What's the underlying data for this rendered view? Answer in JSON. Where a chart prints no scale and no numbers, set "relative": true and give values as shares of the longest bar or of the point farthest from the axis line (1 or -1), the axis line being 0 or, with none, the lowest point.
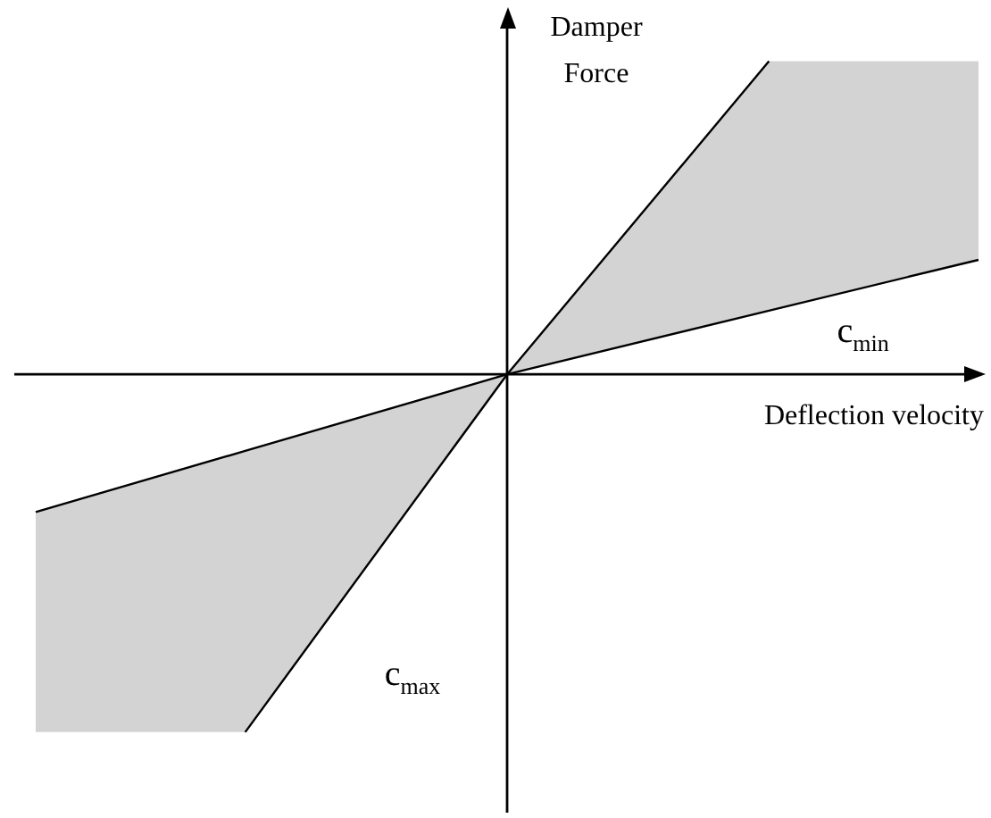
{
  "chart_data": {
    "type": "line",
    "relative": true,
    "xlabel": "Deflection velocity",
    "ylabel": "Damper Force",
    "legend": false,
    "categories": [
      null,
      null,
      null,
      null,
      null,
      null,
      null,
      null,
      null,
      null,
      null,
      null,
      null,
      null,
      null,
      null,
      null,
      null,
      null
    ],
    "series": [
      {
        "color": "#000000",
        "values": [
          null,
          null,
          null,
          null,
          -1,
          null,
          null,
          null,
          null,
          0,
          null,
          null,
          null,
          null,
          0.875,
          null,
          null,
          null,
          null
        ]
      },
      {
        "color": "#000000",
        "values": [
          -0.385,
          null,
          null,
          null,
          -0.214,
          null,
          null,
          null,
          null,
          0,
          null,
          null,
          null,
          null,
          0.178,
          null,
          null,
          null,
          0.32
        ],
        "upper": [
          -0.385,
          null,
          null,
          null,
          -0.214,
          null,
          null,
          null,
          null,
          0,
          null,
          null,
          null,
          null,
          0.875,
          null,
          null,
          null,
          0.875
        ],
        "lower": [
          -1,
          null,
          null,
          null,
          -1,
          null,
          null,
          null,
          null,
          0,
          null,
          null,
          null,
          null,
          0.178,
          null,
          null,
          null,
          0.32
        ]
      }
    ],
    "annotations": [
      "c$_{min}$",
      "c$_{max}$"
    ]
  }
}
